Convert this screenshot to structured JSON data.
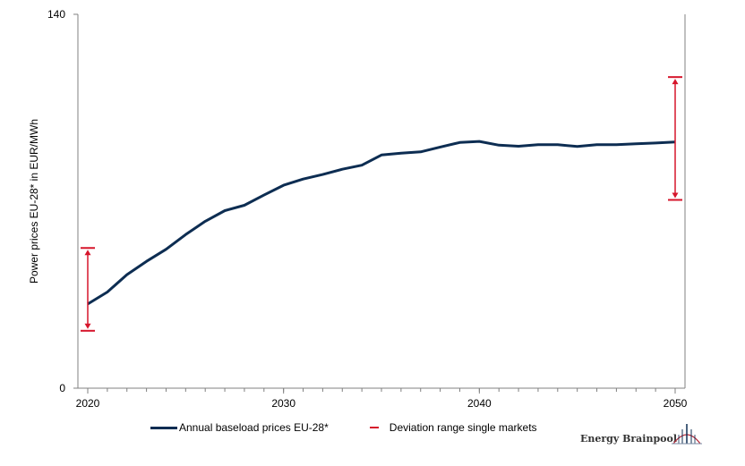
{
  "chart_data": {
    "type": "line",
    "ylabel": "Power prices EU-28* in EUR/MWh",
    "xlabel": "",
    "ylim": [
      0,
      140
    ],
    "xlim": [
      2020,
      2050
    ],
    "y_ticks": [
      "0",
      "140"
    ],
    "x_ticks": [
      "2020",
      "2030",
      "2040",
      "2050"
    ],
    "grid": false,
    "legend_placement": "bottom",
    "series": [
      {
        "name": "Annual baseload prices EU-28*",
        "color": "#0d2d52",
        "x": [
          2020,
          2021,
          2022,
          2023,
          2024,
          2025,
          2026,
          2027,
          2028,
          2029,
          2030,
          2031,
          2032,
          2033,
          2034,
          2035,
          2036,
          2037,
          2038,
          2039,
          2040,
          2041,
          2042,
          2043,
          2044,
          2045,
          2046,
          2047,
          2048,
          2049,
          2050
        ],
        "values": [
          31.5,
          36,
          42.5,
          47.5,
          52,
          57.5,
          62.5,
          66.5,
          68.5,
          72.3,
          76,
          78.3,
          80,
          82,
          83.5,
          87.3,
          88,
          88.5,
          90.3,
          92,
          92.4,
          91,
          90.6,
          91.2,
          91.2,
          90.5,
          91.2,
          91.2,
          91.5,
          91.8,
          92.2
        ]
      }
    ],
    "ranges": {
      "name": "Deviation range single markets",
      "color": "#d6152b",
      "items": [
        {
          "x": 2020,
          "low": 21.5,
          "high": 52.5
        },
        {
          "x": 2050,
          "low": 70.5,
          "high": 116.5
        }
      ]
    }
  },
  "logo": {
    "text": "Energy Brainpool"
  }
}
